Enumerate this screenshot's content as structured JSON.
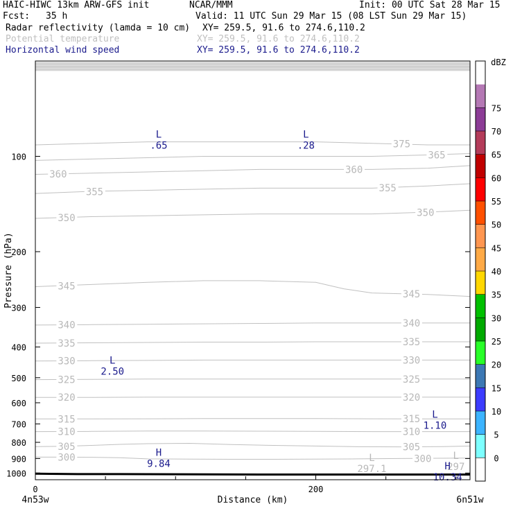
{
  "header": {
    "model": "HAIC-HIWC 13km ARW-GFS init",
    "org": "NCAR/MMM",
    "init": "Init: 00 UTC Sat 28 Mar 15",
    "fcst_label": "Fcst:",
    "fcst_value": "35 h",
    "valid": "Valid: 11 UTC Sun 29 Mar 15 (08 LST Sun 29 Mar 15)",
    "fields": [
      {
        "name": "Radar reflectivity (lamda = 10 cm)",
        "xy": "XY= 259.5, 91.6 to 274.6,110.2",
        "color": "#000000"
      },
      {
        "name": "Potential temperature",
        "xy": "XY= 259.5, 91.6 to 274.6,110.2",
        "color": "#bfbfbf"
      },
      {
        "name": "Horizontal wind speed",
        "xy": "XY= 259.5, 91.6 to 274.6,110.2",
        "color": "#1a1a8c"
      }
    ]
  },
  "chart_data": {
    "type": "line",
    "title": "",
    "xlabel": "Distance (km)",
    "ylabel": "Pressure (hPa)",
    "xlim": [
      0,
      310
    ],
    "ylim": [
      1050,
      50
    ],
    "y_scale": "log",
    "x_ticks": [
      {
        "value": 0,
        "label": "0"
      },
      {
        "value": 200,
        "label": "200"
      }
    ],
    "x_minor_ticks": [
      50,
      100,
      150,
      250,
      300
    ],
    "x_end_labels": {
      "left": "4n53w",
      "right": "6n51w"
    },
    "y_ticks": [
      100,
      200,
      300,
      400,
      500,
      600,
      700,
      800,
      900,
      1000
    ],
    "theta_contours": [
      {
        "level": 300,
        "x": [
          0,
          20,
          40,
          60,
          80,
          110,
          140,
          170,
          200,
          230,
          260,
          290,
          310
        ],
        "p": [
          891,
          891,
          892,
          895,
          902,
          904,
          905,
          905,
          904,
          902,
          900,
          898,
          897
        ],
        "labels": [
          {
            "x": 16,
            "text": "300"
          },
          {
            "x": 270,
            "text": "300"
          }
        ]
      },
      {
        "level": 305,
        "x": [
          0,
          20,
          40,
          60,
          80,
          110,
          140,
          170,
          200,
          230,
          260,
          290,
          310
        ],
        "p": [
          825,
          823,
          818,
          812,
          808,
          806,
          813,
          818,
          822,
          826,
          827,
          825,
          822
        ],
        "labels": [
          {
            "x": 16,
            "text": "305"
          },
          {
            "x": 262,
            "text": "305"
          }
        ]
      },
      {
        "level": 310,
        "x": [
          0,
          40,
          80,
          120,
          160,
          200,
          240,
          280,
          310
        ],
        "p": [
          740,
          739,
          737,
          737,
          738,
          739,
          740,
          740,
          740
        ],
        "labels": [
          {
            "x": 16,
            "text": "310"
          },
          {
            "x": 262,
            "text": "310"
          }
        ]
      },
      {
        "level": 315,
        "x": [
          0,
          40,
          80,
          120,
          160,
          200,
          240,
          280,
          310
        ],
        "p": [
          675,
          675,
          674,
          673,
          673,
          673,
          674,
          675,
          675
        ],
        "labels": [
          {
            "x": 16,
            "text": "315"
          },
          {
            "x": 262,
            "text": "315"
          }
        ]
      },
      {
        "level": 320,
        "x": [
          0,
          40,
          80,
          120,
          160,
          200,
          240,
          280,
          310
        ],
        "p": [
          577,
          577,
          576,
          576,
          576,
          576,
          576,
          576,
          576
        ],
        "labels": [
          {
            "x": 16,
            "text": "320"
          },
          {
            "x": 262,
            "text": "320"
          }
        ]
      },
      {
        "level": 325,
        "x": [
          0,
          40,
          80,
          120,
          160,
          200,
          240,
          280,
          310
        ],
        "p": [
          507,
          506,
          505,
          505,
          505,
          505,
          505,
          505,
          505
        ],
        "labels": [
          {
            "x": 16,
            "text": "325"
          },
          {
            "x": 262,
            "text": "325"
          }
        ]
      },
      {
        "level": 330,
        "x": [
          0,
          40,
          80,
          120,
          160,
          200,
          240,
          280,
          310
        ],
        "p": [
          443,
          442,
          441,
          440,
          440,
          440,
          440,
          440,
          440
        ],
        "labels": [
          {
            "x": 16,
            "text": "330"
          },
          {
            "x": 262,
            "text": "330"
          }
        ]
      },
      {
        "level": 335,
        "x": [
          0,
          40,
          80,
          120,
          160,
          200,
          240,
          280,
          310
        ],
        "p": [
          389,
          388,
          387,
          386,
          386,
          385,
          385,
          385,
          385
        ],
        "labels": [
          {
            "x": 16,
            "text": "335"
          },
          {
            "x": 262,
            "text": "335"
          }
        ]
      },
      {
        "level": 340,
        "x": [
          0,
          40,
          80,
          120,
          160,
          200,
          240,
          280,
          310
        ],
        "p": [
          341,
          340,
          339,
          338,
          337,
          336,
          336,
          336,
          336
        ],
        "labels": [
          {
            "x": 16,
            "text": "340"
          },
          {
            "x": 262,
            "text": "340"
          }
        ]
      },
      {
        "level": 345,
        "x": [
          0,
          40,
          80,
          120,
          160,
          200,
          220,
          240,
          280,
          310
        ],
        "p": [
          258,
          254,
          250,
          247,
          247,
          250,
          262,
          270,
          273,
          277
        ],
        "labels": [
          {
            "x": 16,
            "text": "345"
          },
          {
            "x": 262,
            "text": "345"
          }
        ]
      },
      {
        "level": 350,
        "x": [
          0,
          40,
          80,
          120,
          160,
          200,
          240,
          280,
          310
        ],
        "p": [
          157,
          155,
          154,
          153,
          152,
          152,
          152,
          150,
          148
        ],
        "labels": [
          {
            "x": 16,
            "text": "350"
          },
          {
            "x": 272,
            "text": "350"
          }
        ]
      },
      {
        "level": 355,
        "x": [
          0,
          40,
          80,
          120,
          160,
          200,
          240,
          280,
          310
        ],
        "p": [
          131,
          129,
          128,
          127,
          126,
          126,
          126,
          124,
          122
        ],
        "labels": [
          {
            "x": 36,
            "text": "355"
          },
          {
            "x": 245,
            "text": "355"
          }
        ]
      },
      {
        "level": 360,
        "x": [
          0,
          40,
          80,
          120,
          160,
          200,
          240,
          280,
          310
        ],
        "p": [
          114,
          113,
          112,
          111,
          110,
          110,
          110,
          109,
          107
        ],
        "labels": [
          {
            "x": 10,
            "text": "360"
          },
          {
            "x": 221,
            "text": "360"
          }
        ]
      },
      {
        "level": 365,
        "x": [
          0,
          40,
          80,
          120,
          160,
          200,
          240,
          280,
          310
        ],
        "p": [
          103,
          102,
          101,
          100,
          100,
          100,
          100,
          99,
          98
        ],
        "labels": [
          {
            "x": 280,
            "text": "365"
          }
        ]
      },
      {
        "level": 375,
        "x": [
          0,
          40,
          80,
          120,
          160,
          200,
          240,
          280,
          310
        ],
        "p": [
          92,
          91,
          90,
          90,
          90,
          90,
          91,
          92,
          92
        ],
        "labels": [
          {
            "x": 255,
            "text": "375"
          }
        ]
      }
    ],
    "theta_extrema": [
      {
        "kind": "L",
        "value": "297.1",
        "x": 240,
        "p": 945
      },
      {
        "kind": "L",
        "value": "297",
        "x": 300,
        "p": 930
      }
    ],
    "wind_extrema": [
      {
        "kind": "L",
        "value": ".65",
        "x": 88,
        "p": 90
      },
      {
        "kind": "L",
        "value": ".28",
        "x": 193,
        "p": 90
      },
      {
        "kind": "L",
        "value": "2.50",
        "x": 55,
        "p": 465
      },
      {
        "kind": "H",
        "value": "9.84",
        "x": 88,
        "p": 910
      },
      {
        "kind": "L",
        "value": "1.10",
        "x": 285,
        "p": 690
      },
      {
        "kind": "H",
        "value": "10.34",
        "x": 294,
        "p": 1003
      }
    ],
    "terrain": {
      "x": [
        0,
        10,
        30,
        60,
        100,
        120,
        160,
        200,
        240,
        280,
        310
      ],
      "p": [
        1005,
        1006,
        1008,
        1008,
        1009,
        1010,
        1011,
        1011,
        1011,
        1011,
        1011
      ]
    },
    "grid": false,
    "colorbar": {
      "label": "dBZ",
      "levels": [
        0,
        5,
        10,
        15,
        20,
        25,
        30,
        35,
        40,
        45,
        50,
        55,
        60,
        65,
        70,
        75
      ],
      "colors": [
        "#ffffff",
        "#7dffff",
        "#3cb4ff",
        "#3c3cff",
        "#3c78b4",
        "#28ff28",
        "#00aa00",
        "#00c000",
        "#ffd700",
        "#ffaa46",
        "#ff9650",
        "#ff5000",
        "#ff0000",
        "#c00000",
        "#b43c5a",
        "#8c3c96",
        "#b478b4",
        "#ffffff"
      ]
    }
  }
}
